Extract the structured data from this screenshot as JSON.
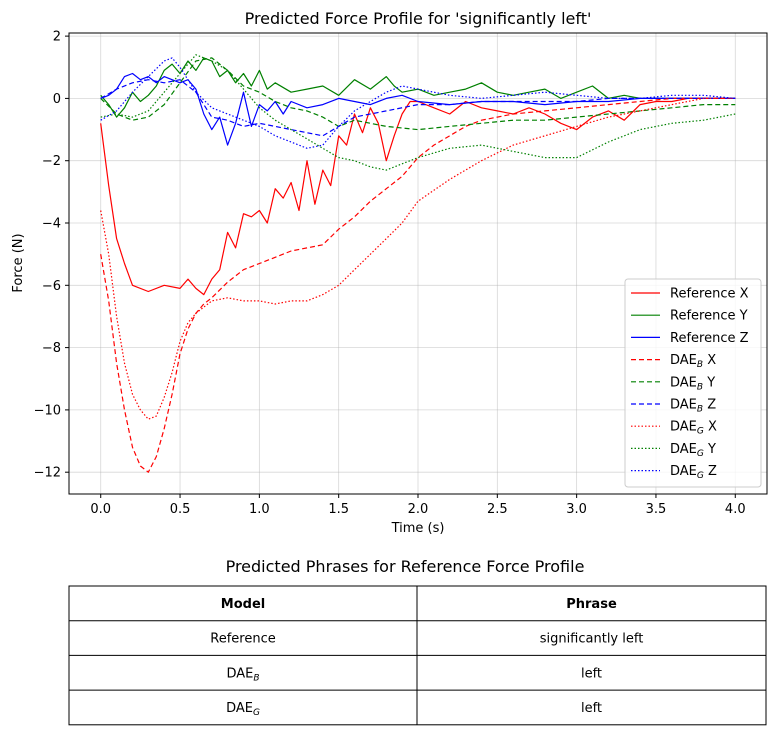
{
  "chart_data": {
    "type": "line",
    "title": "Predicted Force Profile for 'significantly left'",
    "xlabel": "Time (s)",
    "ylabel": "Force (N)",
    "xlim": [
      -0.2,
      4.2
    ],
    "ylim": [
      -12.7,
      2.1
    ],
    "xticks": [
      0.0,
      0.5,
      1.0,
      1.5,
      2.0,
      2.5,
      3.0,
      3.5,
      4.0
    ],
    "xtick_labels": [
      "0.0",
      "0.5",
      "1.0",
      "1.5",
      "2.0",
      "2.5",
      "3.0",
      "3.5",
      "4.0"
    ],
    "yticks": [
      2,
      0,
      -2,
      -4,
      -6,
      -8,
      -10,
      -12
    ],
    "ytick_labels": [
      "2",
      "0",
      "−2",
      "−4",
      "−6",
      "−8",
      "−10",
      "−12"
    ],
    "grid": true,
    "legend_position": "lower-right",
    "series": [
      {
        "name": "Reference X",
        "legend": {
          "main": "Reference X",
          "sub": "",
          "tail": ""
        },
        "color": "#ff0000",
        "style": "solid",
        "x": [
          0,
          0.05,
          0.1,
          0.15,
          0.2,
          0.3,
          0.4,
          0.5,
          0.55,
          0.6,
          0.65,
          0.7,
          0.75,
          0.8,
          0.85,
          0.9,
          0.95,
          1.0,
          1.05,
          1.1,
          1.15,
          1.2,
          1.25,
          1.3,
          1.35,
          1.4,
          1.45,
          1.5,
          1.55,
          1.6,
          1.65,
          1.7,
          1.75,
          1.8,
          1.85,
          1.9,
          1.95,
          2.0,
          2.1,
          2.2,
          2.3,
          2.4,
          2.5,
          2.6,
          2.7,
          2.8,
          2.9,
          3.0,
          3.1,
          3.2,
          3.3,
          3.4,
          3.5,
          3.6,
          3.7,
          3.8,
          3.9,
          4.0
        ],
        "y": [
          -0.8,
          -2.8,
          -4.5,
          -5.3,
          -6.0,
          -6.2,
          -6.0,
          -6.1,
          -5.8,
          -6.1,
          -6.3,
          -5.8,
          -5.5,
          -4.3,
          -4.8,
          -3.7,
          -3.8,
          -3.6,
          -4.0,
          -2.9,
          -3.2,
          -2.7,
          -3.6,
          -2.0,
          -3.4,
          -2.3,
          -2.8,
          -1.2,
          -1.5,
          -0.5,
          -1.1,
          -0.3,
          -0.8,
          -2.0,
          -1.2,
          -0.5,
          -0.1,
          -0.1,
          -0.3,
          -0.5,
          -0.1,
          -0.3,
          -0.4,
          -0.5,
          -0.3,
          -0.5,
          -0.8,
          -1.0,
          -0.6,
          -0.4,
          -0.7,
          -0.2,
          -0.1,
          -0.1,
          0.0,
          0.0,
          0.0,
          0.0
        ]
      },
      {
        "name": "Reference Y",
        "legend": {
          "main": "Reference Y",
          "sub": "",
          "tail": ""
        },
        "color": "#008000",
        "style": "solid",
        "x": [
          0,
          0.05,
          0.1,
          0.15,
          0.2,
          0.25,
          0.3,
          0.35,
          0.4,
          0.45,
          0.5,
          0.55,
          0.6,
          0.65,
          0.7,
          0.75,
          0.8,
          0.85,
          0.9,
          0.95,
          1.0,
          1.05,
          1.1,
          1.2,
          1.3,
          1.4,
          1.5,
          1.6,
          1.7,
          1.8,
          1.85,
          1.9,
          2.0,
          2.1,
          2.2,
          2.3,
          2.4,
          2.5,
          2.6,
          2.7,
          2.8,
          2.9,
          3.0,
          3.1,
          3.2,
          3.3,
          3.4,
          3.5,
          3.6,
          3.7,
          3.8,
          3.9,
          4.0
        ],
        "y": [
          0.1,
          -0.2,
          -0.6,
          -0.3,
          0.2,
          -0.1,
          0.1,
          0.4,
          0.9,
          1.1,
          0.8,
          1.2,
          0.9,
          1.3,
          1.2,
          0.7,
          0.9,
          0.5,
          0.8,
          0.4,
          0.9,
          0.3,
          0.5,
          0.2,
          0.3,
          0.4,
          0.1,
          0.6,
          0.3,
          0.7,
          0.4,
          0.2,
          0.3,
          0.1,
          0.2,
          0.3,
          0.5,
          0.2,
          0.1,
          0.2,
          0.3,
          0.0,
          0.2,
          0.4,
          0.0,
          0.1,
          0.0,
          0.0,
          0.0,
          0.0,
          0.0,
          0.0,
          0.0
        ]
      },
      {
        "name": "Reference Z",
        "legend": {
          "main": "Reference Z",
          "sub": "",
          "tail": ""
        },
        "color": "#0000ff",
        "style": "solid",
        "x": [
          0,
          0.05,
          0.1,
          0.15,
          0.2,
          0.25,
          0.3,
          0.35,
          0.4,
          0.45,
          0.5,
          0.55,
          0.6,
          0.65,
          0.7,
          0.75,
          0.8,
          0.85,
          0.9,
          0.95,
          1.0,
          1.05,
          1.1,
          1.15,
          1.2,
          1.3,
          1.4,
          1.5,
          1.6,
          1.7,
          1.8,
          1.9,
          2.0,
          2.2,
          2.4,
          2.6,
          2.8,
          3.0,
          3.2,
          3.4,
          3.6,
          3.8,
          4.0
        ],
        "y": [
          0.0,
          0.1,
          0.3,
          0.7,
          0.8,
          0.6,
          0.7,
          0.5,
          0.7,
          0.6,
          0.5,
          0.6,
          0.3,
          -0.5,
          -1.0,
          -0.6,
          -1.5,
          -0.8,
          0.2,
          -0.9,
          -0.2,
          -0.4,
          -0.1,
          -0.5,
          -0.1,
          -0.3,
          -0.2,
          0.0,
          -0.1,
          -0.2,
          0.0,
          0.1,
          -0.1,
          -0.2,
          -0.1,
          -0.1,
          -0.2,
          -0.1,
          -0.1,
          0.0,
          0.0,
          0.0,
          0.0
        ]
      },
      {
        "name": "DAE_B X",
        "legend": {
          "main": "DAE",
          "sub": "B",
          "tail": " X"
        },
        "color": "#ff0000",
        "style": "dashed",
        "x": [
          0,
          0.05,
          0.1,
          0.15,
          0.2,
          0.25,
          0.3,
          0.35,
          0.4,
          0.45,
          0.5,
          0.55,
          0.6,
          0.65,
          0.7,
          0.8,
          0.9,
          1.0,
          1.1,
          1.2,
          1.3,
          1.4,
          1.5,
          1.6,
          1.7,
          1.8,
          1.9,
          2.0,
          2.1,
          2.2,
          2.3,
          2.4,
          2.5,
          2.6,
          2.8,
          3.0,
          3.2,
          3.4,
          3.6,
          3.8,
          4.0
        ],
        "y": [
          -5.0,
          -6.5,
          -8.5,
          -10.0,
          -11.2,
          -11.8,
          -12.0,
          -11.5,
          -10.6,
          -9.5,
          -8.2,
          -7.4,
          -6.9,
          -6.6,
          -6.4,
          -5.9,
          -5.5,
          -5.3,
          -5.1,
          -4.9,
          -4.8,
          -4.7,
          -4.2,
          -3.8,
          -3.3,
          -2.9,
          -2.5,
          -1.9,
          -1.5,
          -1.2,
          -0.9,
          -0.7,
          -0.6,
          -0.5,
          -0.4,
          -0.3,
          -0.2,
          -0.1,
          0.0,
          0.0,
          0.0
        ]
      },
      {
        "name": "DAE_B Y",
        "legend": {
          "main": "DAE",
          "sub": "B",
          "tail": " Y"
        },
        "color": "#008000",
        "style": "dashed",
        "x": [
          0,
          0.1,
          0.2,
          0.3,
          0.4,
          0.5,
          0.6,
          0.7,
          0.8,
          0.9,
          1.0,
          1.1,
          1.2,
          1.3,
          1.4,
          1.5,
          1.6,
          1.8,
          2.0,
          2.2,
          2.4,
          2.6,
          2.8,
          3.0,
          3.2,
          3.4,
          3.6,
          3.8,
          4.0
        ],
        "y": [
          0.0,
          -0.5,
          -0.7,
          -0.6,
          -0.2,
          0.5,
          1.2,
          1.3,
          0.9,
          0.4,
          0.2,
          -0.1,
          -0.3,
          -0.4,
          -0.6,
          -0.9,
          -0.7,
          -0.9,
          -1.0,
          -0.9,
          -0.8,
          -0.7,
          -0.7,
          -0.6,
          -0.5,
          -0.4,
          -0.3,
          -0.2,
          -0.2
        ]
      },
      {
        "name": "DAE_B Z",
        "legend": {
          "main": "DAE",
          "sub": "B",
          "tail": " Z"
        },
        "color": "#0000ff",
        "style": "dashed",
        "x": [
          0,
          0.1,
          0.2,
          0.3,
          0.4,
          0.5,
          0.6,
          0.7,
          0.8,
          0.9,
          1.0,
          1.1,
          1.2,
          1.3,
          1.4,
          1.5,
          1.6,
          1.8,
          2.0,
          2.2,
          2.4,
          2.6,
          2.8,
          3.0,
          3.2,
          3.4,
          3.6,
          3.8,
          4.0
        ],
        "y": [
          0.0,
          0.3,
          0.5,
          0.6,
          0.5,
          0.6,
          0.2,
          -0.6,
          -0.7,
          -0.9,
          -0.8,
          -0.9,
          -1.0,
          -1.1,
          -1.2,
          -0.9,
          -0.6,
          -0.4,
          -0.2,
          -0.2,
          -0.1,
          -0.1,
          -0.1,
          -0.1,
          0.0,
          0.0,
          0.0,
          0.0,
          0.0
        ]
      },
      {
        "name": "DAE_G X",
        "legend": {
          "main": "DAE",
          "sub": "G",
          "tail": " X"
        },
        "color": "#ff0000",
        "style": "dotted",
        "x": [
          0,
          0.05,
          0.1,
          0.15,
          0.2,
          0.25,
          0.3,
          0.35,
          0.4,
          0.45,
          0.5,
          0.55,
          0.6,
          0.65,
          0.7,
          0.8,
          0.9,
          1.0,
          1.1,
          1.2,
          1.3,
          1.4,
          1.5,
          1.6,
          1.7,
          1.8,
          1.9,
          2.0,
          2.2,
          2.4,
          2.6,
          2.8,
          3.0,
          3.2,
          3.4,
          3.6,
          3.8,
          4.0
        ],
        "y": [
          -3.6,
          -5.0,
          -7.0,
          -8.5,
          -9.5,
          -10.0,
          -10.3,
          -10.2,
          -9.6,
          -8.8,
          -7.8,
          -7.2,
          -6.9,
          -6.7,
          -6.5,
          -6.4,
          -6.5,
          -6.5,
          -6.6,
          -6.5,
          -6.5,
          -6.3,
          -6.0,
          -5.5,
          -5.0,
          -4.5,
          -4.0,
          -3.3,
          -2.6,
          -2.0,
          -1.5,
          -1.2,
          -0.9,
          -0.6,
          -0.4,
          -0.2,
          0.0,
          0.0
        ]
      },
      {
        "name": "DAE_G Y",
        "legend": {
          "main": "DAE",
          "sub": "G",
          "tail": " Y"
        },
        "color": "#008000",
        "style": "dotted",
        "x": [
          0,
          0.1,
          0.2,
          0.3,
          0.4,
          0.5,
          0.6,
          0.7,
          0.8,
          0.9,
          1.0,
          1.1,
          1.2,
          1.3,
          1.4,
          1.5,
          1.6,
          1.7,
          1.8,
          1.9,
          2.0,
          2.2,
          2.4,
          2.6,
          2.8,
          3.0,
          3.2,
          3.4,
          3.6,
          3.8,
          4.0
        ],
        "y": [
          -0.6,
          -0.5,
          -0.6,
          -0.4,
          0.2,
          0.8,
          1.4,
          1.2,
          0.9,
          0.3,
          -0.3,
          -0.7,
          -1.0,
          -1.3,
          -1.6,
          -1.9,
          -2.0,
          -2.2,
          -2.3,
          -2.1,
          -1.9,
          -1.6,
          -1.5,
          -1.7,
          -1.9,
          -1.9,
          -1.4,
          -1.0,
          -0.8,
          -0.7,
          -0.5
        ]
      },
      {
        "name": "DAE_G Z",
        "legend": {
          "main": "DAE",
          "sub": "G",
          "tail": " Z"
        },
        "color": "#0000ff",
        "style": "dotted",
        "x": [
          0,
          0.1,
          0.2,
          0.3,
          0.4,
          0.45,
          0.5,
          0.6,
          0.7,
          0.8,
          0.9,
          1.0,
          1.1,
          1.2,
          1.3,
          1.4,
          1.5,
          1.6,
          1.7,
          1.8,
          1.9,
          2.0,
          2.2,
          2.4,
          2.6,
          2.8,
          3.0,
          3.2,
          3.4,
          3.6,
          3.8,
          4.0
        ],
        "y": [
          -0.7,
          -0.4,
          0.2,
          0.7,
          1.2,
          1.3,
          1.0,
          0.2,
          -0.3,
          -0.5,
          -0.7,
          -0.9,
          -1.2,
          -1.4,
          -1.6,
          -1.5,
          -0.9,
          -0.4,
          -0.1,
          0.2,
          0.4,
          0.3,
          0.1,
          0.0,
          0.1,
          0.2,
          0.1,
          0.0,
          0.0,
          0.1,
          0.1,
          0.0
        ]
      }
    ]
  },
  "table": {
    "title": "Predicted Phrases for Reference Force Profile",
    "headers": [
      "Model",
      "Phrase"
    ],
    "rows": [
      {
        "model": {
          "main": "Reference",
          "sub": ""
        },
        "phrase": "significantly left"
      },
      {
        "model": {
          "main": "DAE",
          "sub": "B"
        },
        "phrase": "left"
      },
      {
        "model": {
          "main": "DAE",
          "sub": "G"
        },
        "phrase": "left"
      }
    ]
  }
}
